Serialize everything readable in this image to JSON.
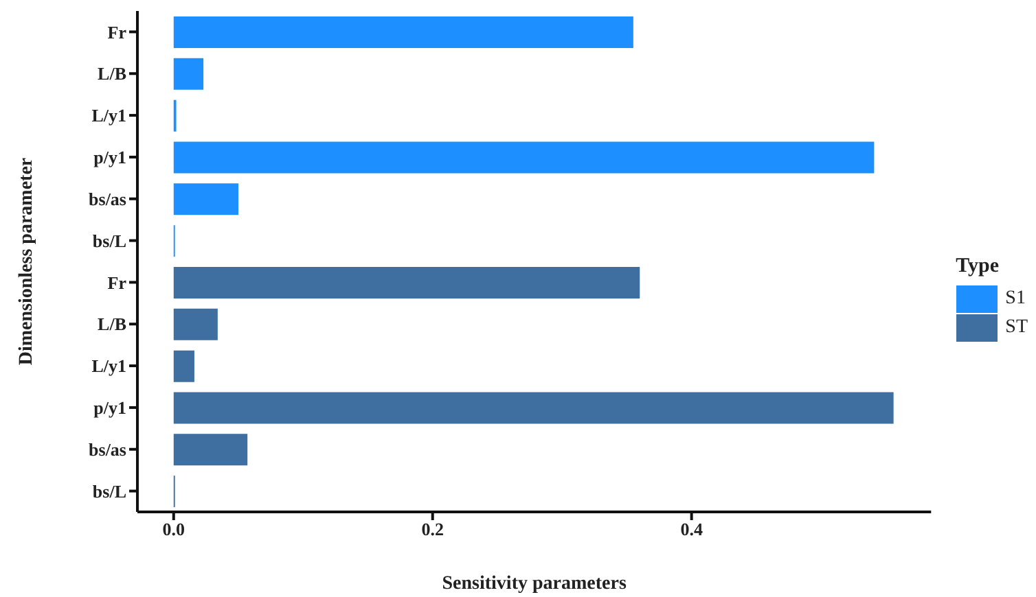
{
  "chart_data": {
    "type": "bar",
    "orientation": "horizontal",
    "stacked": true,
    "xlabel": "Sensitivity parameters",
    "ylabel": "Dimensionless parameter",
    "legend_title": "Type",
    "legend": "right",
    "categories": [
      "Fr",
      "L/B",
      "L/y1",
      "p/y1",
      "bs/as",
      "bs/L",
      "Fr",
      "L/B",
      "L/y1",
      "p/y1",
      "bs/as",
      "bs/L"
    ],
    "series": [
      {
        "name": "S1",
        "color": "#1e8fff",
        "values": [
          0.355,
          0.023,
          0.002,
          0.541,
          0.05,
          0.001,
          null,
          null,
          null,
          null,
          null,
          null
        ]
      },
      {
        "name": "ST",
        "color": "#3f6fa0",
        "values": [
          null,
          null,
          null,
          null,
          null,
          null,
          0.36,
          0.034,
          0.016,
          0.556,
          0.057,
          0.001
        ]
      }
    ],
    "xlim": [
      -0.028,
      0.585
    ],
    "xticks": [
      {
        "value": 0,
        "label": "0.0"
      },
      {
        "value": 0.2,
        "label": "0.2"
      },
      {
        "value": 0.4,
        "label": "0.4"
      }
    ],
    "grid": false
  }
}
